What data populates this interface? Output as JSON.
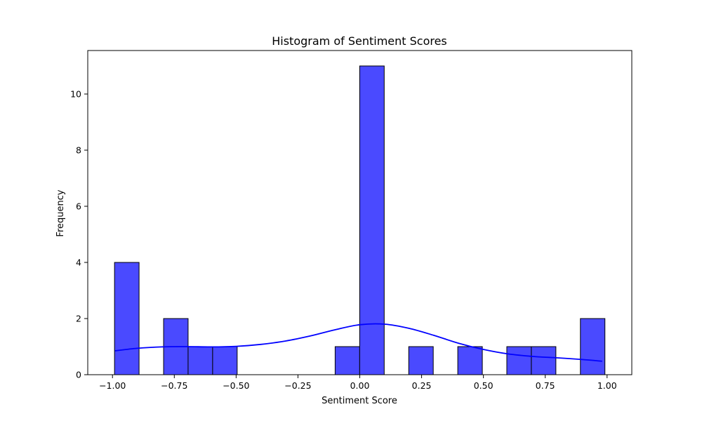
{
  "chart_data": {
    "type": "bar",
    "title": "Histogram of Sentiment Scores",
    "xlabel": "Sentiment Score",
    "ylabel": "Frequency",
    "xlim": [
      -1.1,
      1.1
    ],
    "ylim": [
      0,
      11.55
    ],
    "x_ticks": [
      -1.0,
      -0.75,
      -0.5,
      -0.25,
      0.0,
      0.25,
      0.5,
      0.75,
      1.0
    ],
    "x_tick_labels": [
      "−1.00",
      "−0.75",
      "−0.50",
      "−0.25",
      "0.00",
      "0.25",
      "0.50",
      "0.75",
      "1.00"
    ],
    "y_ticks": [
      0,
      2,
      4,
      6,
      8,
      10
    ],
    "y_tick_labels": [
      "0",
      "2",
      "4",
      "6",
      "8",
      "10"
    ],
    "bins": [
      {
        "x0": -0.9917,
        "x1": -0.8925,
        "count": 4
      },
      {
        "x0": -0.7933,
        "x1": -0.6942,
        "count": 2
      },
      {
        "x0": -0.6942,
        "x1": -0.595,
        "count": 1
      },
      {
        "x0": -0.595,
        "x1": -0.4958,
        "count": 1
      },
      {
        "x0": -0.0996,
        "x1": -0.0004,
        "count": 1
      },
      {
        "x0": -0.0004,
        "x1": 0.0988,
        "count": 11
      },
      {
        "x0": 0.198,
        "x1": 0.2971,
        "count": 1
      },
      {
        "x0": 0.3963,
        "x1": 0.4955,
        "count": 1
      },
      {
        "x0": 0.5946,
        "x1": 0.6938,
        "count": 1
      },
      {
        "x0": 0.6938,
        "x1": 0.793,
        "count": 1
      },
      {
        "x0": 0.8921,
        "x1": 0.9913,
        "count": 2
      }
    ],
    "kde": {
      "x": [
        -0.99,
        -0.9,
        -0.8,
        -0.7,
        -0.6,
        -0.5,
        -0.4,
        -0.3,
        -0.2,
        -0.1,
        0.0,
        0.1,
        0.2,
        0.3,
        0.4,
        0.5,
        0.6,
        0.7,
        0.8,
        0.9,
        0.98
      ],
      "y": [
        0.85,
        0.94,
        0.99,
        1.0,
        0.99,
        1.01,
        1.08,
        1.2,
        1.38,
        1.6,
        1.78,
        1.8,
        1.65,
        1.4,
        1.12,
        0.9,
        0.74,
        0.65,
        0.6,
        0.54,
        0.48
      ]
    },
    "colors": {
      "bar_fill": "#4a4aff",
      "bar_edge": "#000000",
      "kde_line": "#0000ff"
    },
    "grid": false,
    "legend": "none"
  }
}
